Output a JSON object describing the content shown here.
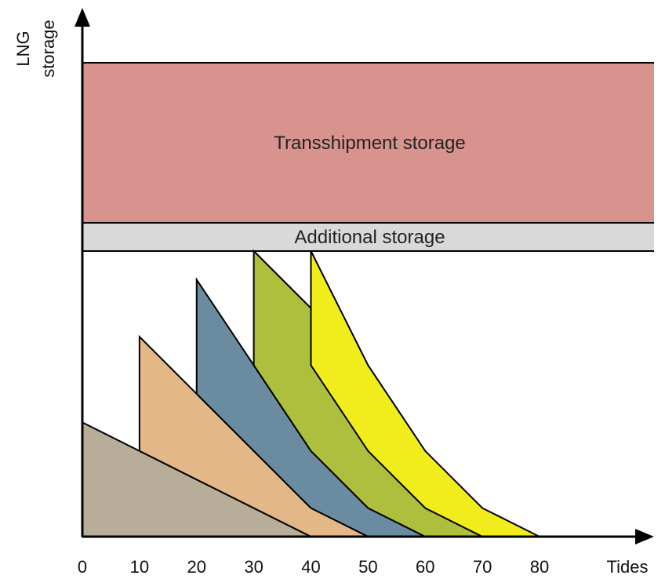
{
  "chart_data": {
    "type": "area",
    "xlabel": "Tides",
    "ylabel": [
      "LNG",
      "storage"
    ],
    "x_ticks": [
      0,
      10,
      20,
      30,
      40,
      50,
      60,
      70,
      80
    ],
    "xlim": [
      0,
      80
    ],
    "ylim": [
      0,
      1
    ],
    "grid": false,
    "bands": [
      {
        "label": "Transshipment storage",
        "y_range": [
          0.5,
          1.0
        ],
        "color": "#d9938f"
      },
      {
        "label": "Additional storage",
        "y_range": [
          0.4,
          0.5
        ],
        "color": "#d9d9d9"
      }
    ],
    "series": [
      {
        "color": "#b7ad98",
        "upper": [
          [
            0,
            0.4
          ],
          [
            40,
            0
          ]
        ],
        "lower": [
          [
            0,
            0
          ],
          [
            40,
            0
          ]
        ]
      },
      {
        "color": "#e3b886",
        "upper": [
          [
            10,
            0.7
          ],
          [
            40,
            0.1
          ],
          [
            50,
            0
          ]
        ],
        "lower": [
          [
            10,
            0.3
          ],
          [
            40,
            0
          ],
          [
            50,
            0
          ]
        ]
      },
      {
        "color": "#6a8ba0",
        "upper": [
          [
            20,
            0.9
          ],
          [
            40,
            0.3
          ],
          [
            50,
            0.1
          ],
          [
            60,
            0
          ]
        ],
        "lower": [
          [
            20,
            0.5
          ],
          [
            40,
            0.1
          ],
          [
            50,
            0
          ],
          [
            60,
            0
          ]
        ]
      },
      {
        "color": "#adbf3c",
        "upper": [
          [
            30,
            1.0
          ],
          [
            40,
            0.8
          ],
          [
            50,
            0.3
          ],
          [
            60,
            0.1
          ],
          [
            70,
            0
          ]
        ],
        "lower": [
          [
            30,
            0.6
          ],
          [
            40,
            0.3
          ],
          [
            50,
            0.1
          ],
          [
            60,
            0
          ],
          [
            70,
            0
          ]
        ]
      },
      {
        "color": "#f1ec1b",
        "upper": [
          [
            40,
            1.0
          ],
          [
            50,
            0.6
          ],
          [
            60,
            0.3
          ],
          [
            70,
            0.1
          ],
          [
            80,
            0
          ]
        ],
        "lower": [
          [
            40,
            0.6
          ],
          [
            50,
            0.3
          ],
          [
            60,
            0.1
          ],
          [
            70,
            0
          ],
          [
            80,
            0
          ]
        ]
      }
    ]
  }
}
